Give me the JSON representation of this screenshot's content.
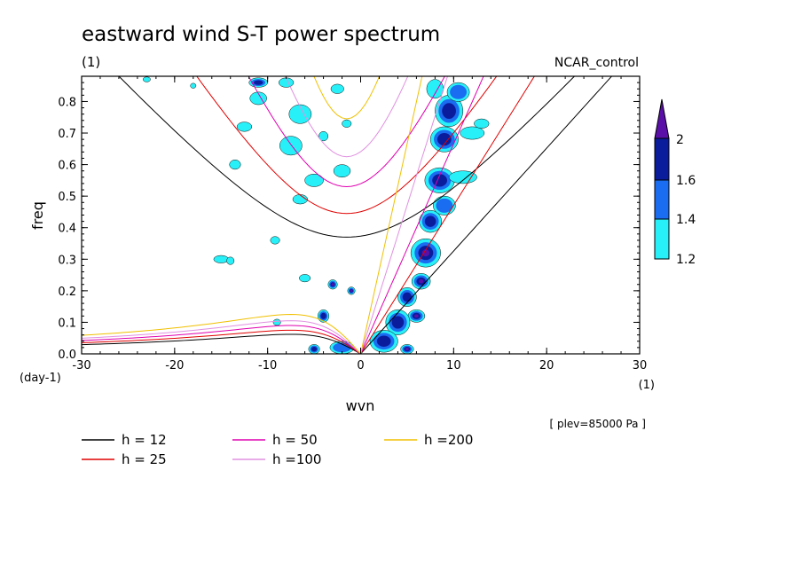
{
  "title": "eastward wind S-T power spectrum",
  "units_label": "(1)",
  "run_label": "NCAR_control",
  "level_label": "[ plev=85000 Pa ]",
  "colorbar": {
    "levels": [
      "2",
      "1.6",
      "1.4",
      "1.2"
    ],
    "colors": [
      "#5a10a8",
      "#0a1c9c",
      "#1a6cf0",
      "#28f0f8"
    ]
  },
  "chart_data": {
    "type": "heatmap",
    "title": "eastward wind S-T power spectrum",
    "xlabel": "wvn",
    "ylabel": "freq",
    "x_units": "(1)",
    "y_units": "(day-1)",
    "xlim": [
      -30,
      30
    ],
    "ylim": [
      0,
      0.88
    ],
    "xticks": [
      "-30",
      "-20",
      "-10",
      "0",
      "10",
      "20",
      "30"
    ],
    "yticks": [
      "0.0",
      "0.1",
      "0.2",
      "0.3",
      "0.4",
      "0.5",
      "0.6",
      "0.7",
      "0.8"
    ],
    "contour_levels": [
      1.2,
      1.4,
      1.6,
      2
    ],
    "legend": [
      {
        "label": "h = 12",
        "color": "#000000"
      },
      {
        "label": "h = 25",
        "color": "#e00000"
      },
      {
        "label": "h = 50",
        "color": "#e000b0"
      },
      {
        "label": "h =100",
        "color": "#e090e0"
      },
      {
        "label": "h =200",
        "color": "#f0c000"
      }
    ],
    "series": [
      {
        "name": "h = 12",
        "kelvin_slope": 0.0326,
        "ig_min_freq": 0.37,
        "mrg_min_freq": 0.37
      },
      {
        "name": "h = 25",
        "kelvin_slope": 0.0471,
        "ig_min_freq": 0.445,
        "mrg_min_freq": 0.445
      },
      {
        "name": "h = 50",
        "kelvin_slope": 0.0666,
        "ig_min_freq": 0.53,
        "mrg_min_freq": 0.53
      },
      {
        "name": "h =100",
        "kelvin_slope": 0.0942,
        "ig_min_freq": 0.625,
        "mrg_min_freq": 0.625
      },
      {
        "name": "h =200",
        "kelvin_slope": 0.1332,
        "ig_min_freq": 0.745,
        "mrg_min_freq": 0.745
      }
    ],
    "blobs": [
      {
        "x": 7,
        "y": 0.32,
        "rx": 1.6,
        "ry": 0.045,
        "level": 2
      },
      {
        "x": 6.5,
        "y": 0.23,
        "rx": 1.0,
        "ry": 0.025,
        "level": 2
      },
      {
        "x": 6,
        "y": 0.12,
        "rx": 0.9,
        "ry": 0.02,
        "level": 2
      },
      {
        "x": 7.5,
        "y": 0.42,
        "rx": 1.2,
        "ry": 0.035,
        "level": 1.6
      },
      {
        "x": 9.5,
        "y": 0.77,
        "rx": 1.5,
        "ry": 0.05,
        "level": 1.6
      },
      {
        "x": 9,
        "y": 0.68,
        "rx": 1.5,
        "ry": 0.04,
        "level": 1.6
      },
      {
        "x": 8.5,
        "y": 0.55,
        "rx": 1.6,
        "ry": 0.04,
        "level": 1.6
      },
      {
        "x": 10.5,
        "y": 0.83,
        "rx": 1.2,
        "ry": 0.03,
        "level": 1.4
      },
      {
        "x": 9,
        "y": 0.47,
        "rx": 1.2,
        "ry": 0.03,
        "level": 1.4
      },
      {
        "x": 5,
        "y": 0.18,
        "rx": 1.0,
        "ry": 0.03,
        "level": 1.6
      },
      {
        "x": 4,
        "y": 0.1,
        "rx": 1.3,
        "ry": 0.04,
        "level": 1.6
      },
      {
        "x": 2.5,
        "y": 0.04,
        "rx": 1.5,
        "ry": 0.035,
        "level": 1.6
      },
      {
        "x": -2,
        "y": 0.02,
        "rx": 1.3,
        "ry": 0.02,
        "level": 1.4
      },
      {
        "x": -4,
        "y": 0.12,
        "rx": 0.6,
        "ry": 0.02,
        "level": 1.6
      },
      {
        "x": -3,
        "y": 0.22,
        "rx": 0.5,
        "ry": 0.015,
        "level": 2
      },
      {
        "x": -1,
        "y": 0.2,
        "rx": 0.4,
        "ry": 0.012,
        "level": 2
      },
      {
        "x": 5,
        "y": 0.015,
        "rx": 0.7,
        "ry": 0.015,
        "level": 2
      },
      {
        "x": -5,
        "y": 0.015,
        "rx": 0.6,
        "ry": 0.015,
        "level": 1.6
      },
      {
        "x": -11,
        "y": 0.86,
        "rx": 1.0,
        "ry": 0.015,
        "level": 1.6
      },
      {
        "x": -11,
        "y": 0.81,
        "rx": 0.9,
        "ry": 0.02,
        "level": 1.2
      },
      {
        "x": -8,
        "y": 0.86,
        "rx": 0.8,
        "ry": 0.015,
        "level": 1.2
      },
      {
        "x": -6.5,
        "y": 0.76,
        "rx": 1.2,
        "ry": 0.03,
        "level": 1.2
      },
      {
        "x": -7.5,
        "y": 0.66,
        "rx": 1.2,
        "ry": 0.03,
        "level": 1.2
      },
      {
        "x": -5,
        "y": 0.55,
        "rx": 1.0,
        "ry": 0.02,
        "level": 1.2
      },
      {
        "x": -2,
        "y": 0.58,
        "rx": 0.9,
        "ry": 0.02,
        "level": 1.2
      },
      {
        "x": -12.5,
        "y": 0.72,
        "rx": 0.8,
        "ry": 0.015,
        "level": 1.2
      },
      {
        "x": -13.5,
        "y": 0.6,
        "rx": 0.6,
        "ry": 0.015,
        "level": 1.2
      },
      {
        "x": -2.5,
        "y": 0.84,
        "rx": 0.7,
        "ry": 0.015,
        "level": 1.2
      },
      {
        "x": -6.5,
        "y": 0.49,
        "rx": 0.8,
        "ry": 0.015,
        "level": 1.2
      },
      {
        "x": -15,
        "y": 0.3,
        "rx": 0.8,
        "ry": 0.012,
        "level": 1.2
      },
      {
        "x": -14,
        "y": 0.295,
        "rx": 0.4,
        "ry": 0.012,
        "level": 1.2
      },
      {
        "x": -6,
        "y": 0.24,
        "rx": 0.6,
        "ry": 0.012,
        "level": 1.2
      },
      {
        "x": -9,
        "y": 0.1,
        "rx": 0.4,
        "ry": 0.01,
        "level": 1.2
      },
      {
        "x": -9.2,
        "y": 0.36,
        "rx": 0.5,
        "ry": 0.012,
        "level": 1.2
      },
      {
        "x": 11,
        "y": 0.56,
        "rx": 1.5,
        "ry": 0.02,
        "level": 1.2
      },
      {
        "x": 12,
        "y": 0.7,
        "rx": 1.3,
        "ry": 0.02,
        "level": 1.2
      },
      {
        "x": 13,
        "y": 0.73,
        "rx": 0.8,
        "ry": 0.015,
        "level": 1.2
      },
      {
        "x": 8,
        "y": 0.84,
        "rx": 0.9,
        "ry": 0.03,
        "level": 1.2
      },
      {
        "x": -23,
        "y": 0.87,
        "rx": 0.4,
        "ry": 0.008,
        "level": 1.2
      },
      {
        "x": -18,
        "y": 0.85,
        "rx": 0.3,
        "ry": 0.008,
        "level": 1.2
      },
      {
        "x": -1.5,
        "y": 0.73,
        "rx": 0.5,
        "ry": 0.012,
        "level": 1.2
      },
      {
        "x": -4,
        "y": 0.69,
        "rx": 0.5,
        "ry": 0.015,
        "level": 1.2
      }
    ]
  }
}
